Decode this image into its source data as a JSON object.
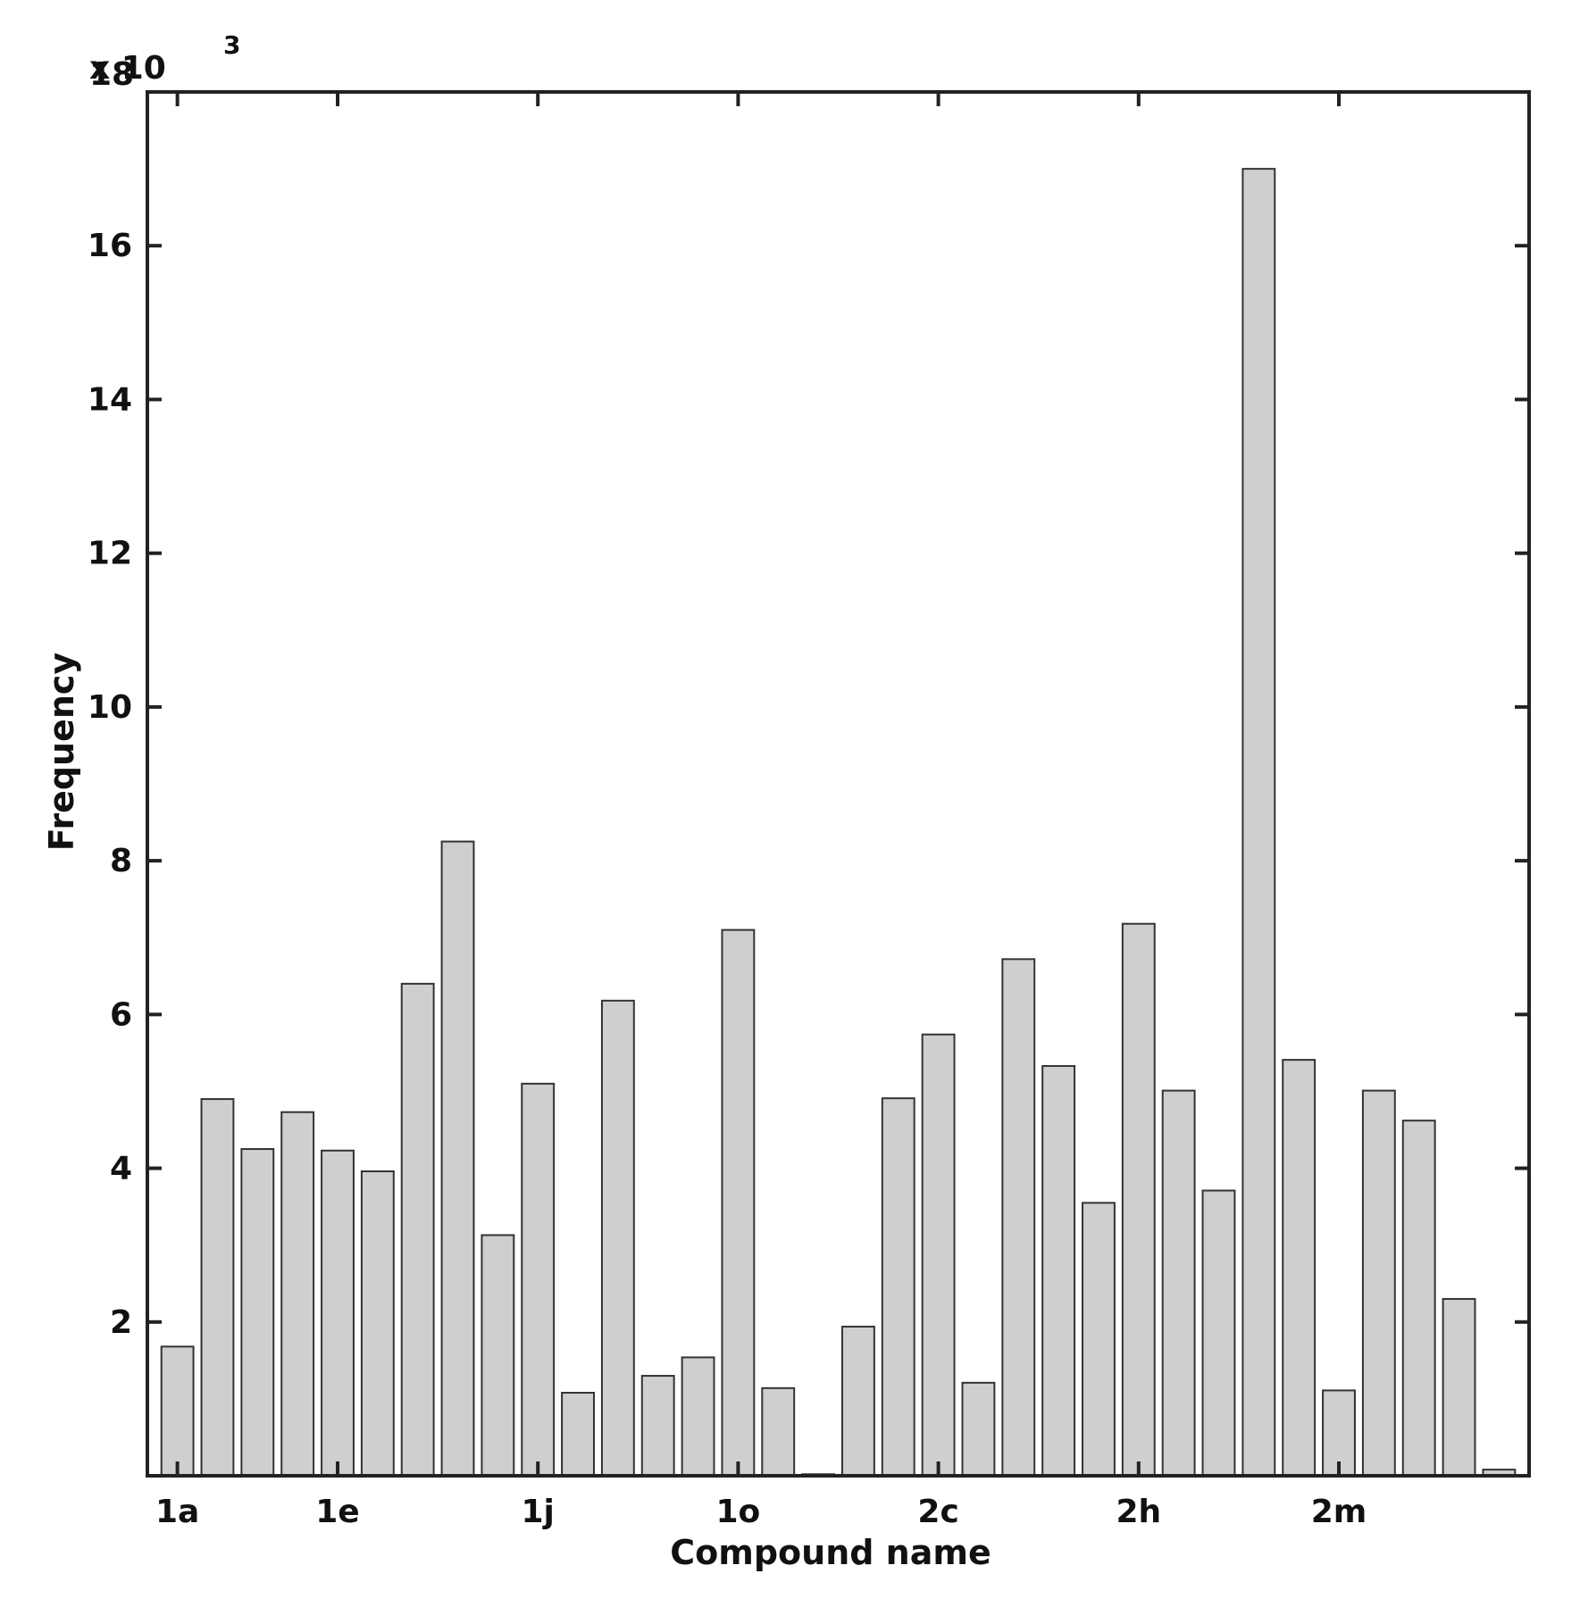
{
  "chart_data": {
    "type": "bar",
    "xlabel": "Compound name",
    "ylabel": "Frequency",
    "y_multiplier_base": "x 10",
    "y_multiplier_exponent": "3",
    "ylim": [
      0,
      18000
    ],
    "y_ticks": [
      2000,
      4000,
      6000,
      8000,
      10000,
      12000,
      14000,
      16000,
      18000
    ],
    "y_tick_labels": [
      "2",
      "4",
      "6",
      "8",
      "10",
      "12",
      "14",
      "16",
      "18"
    ],
    "x_tick_labels": [
      {
        "index": 0,
        "label": "1a"
      },
      {
        "index": 4,
        "label": "1e"
      },
      {
        "index": 9,
        "label": "1j"
      },
      {
        "index": 14,
        "label": "1o"
      },
      {
        "index": 19,
        "label": "2c"
      },
      {
        "index": 24,
        "label": "2h"
      },
      {
        "index": 29,
        "label": "2m"
      }
    ],
    "values": [
      1680,
      4900,
      4250,
      4730,
      4230,
      3960,
      6400,
      8250,
      3130,
      5100,
      1080,
      6180,
      1300,
      1540,
      7100,
      1140,
      20,
      1940,
      4910,
      5740,
      1210,
      6720,
      5330,
      3550,
      7180,
      5010,
      3710,
      17000,
      5410,
      1110,
      5010,
      4620,
      2300,
      80
    ],
    "grid": false,
    "colors": {
      "bar_fill": "#cfcfcf",
      "bar_stroke": "#333333",
      "axis": "#222222"
    }
  }
}
